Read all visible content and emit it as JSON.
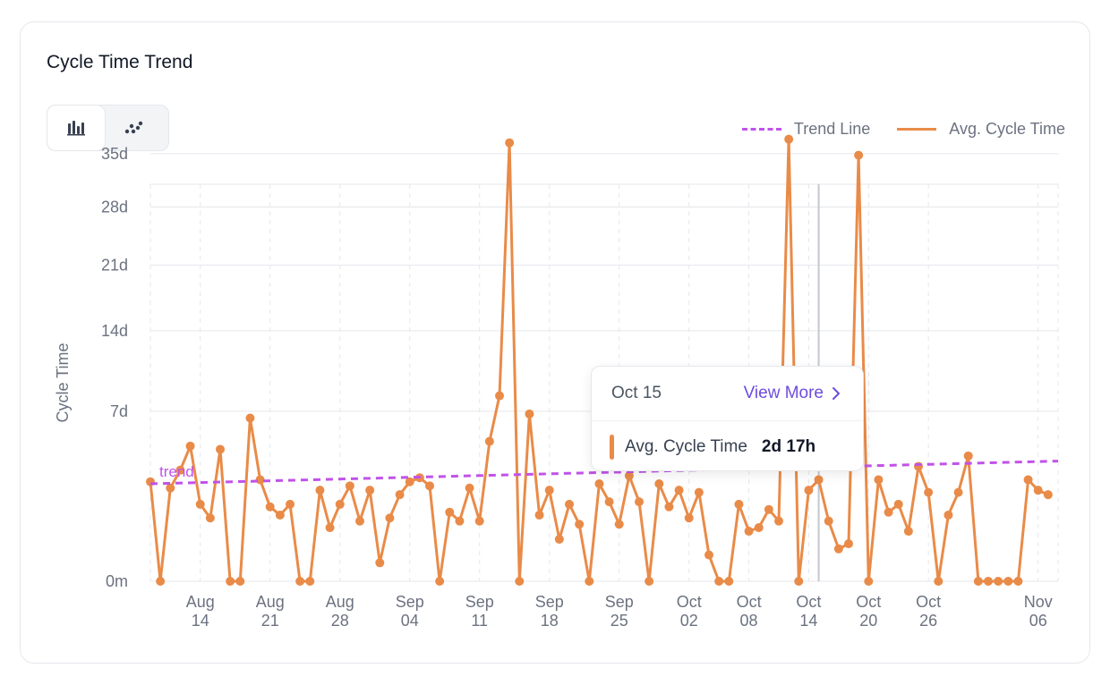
{
  "card": {
    "title": "Cycle Time Trend",
    "view_toggle": [
      {
        "name": "bar-chart-icon",
        "active": true
      },
      {
        "name": "scatter-icon",
        "active": false
      }
    ]
  },
  "legend": {
    "trend": "Trend Line",
    "avg": "Avg. Cycle Time"
  },
  "tooltip": {
    "date": "Oct 15",
    "view_more": "View More",
    "series_label": "Avg. Cycle Time",
    "series_value": "2d 17h"
  },
  "colors": {
    "series": "#e98b48",
    "trend": "#c152e8",
    "grid": "#e5e7eb",
    "text_muted": "#6b7280",
    "link": "#6d4cdf"
  },
  "chart_data": {
    "type": "line",
    "ylabel": "Cycle Time",
    "y_ticks": [
      {
        "label": "0m",
        "days": 0
      },
      {
        "label": "7d",
        "days": 7
      },
      {
        "label": "14d",
        "days": 14
      },
      {
        "label": "21d",
        "days": 21
      },
      {
        "label": "28d",
        "days": 28
      },
      {
        "label": "35d",
        "days": 35
      }
    ],
    "x_ticks": [
      {
        "month": "Aug",
        "day": "14",
        "date": "2023-08-14"
      },
      {
        "month": "Aug",
        "day": "21",
        "date": "2023-08-21"
      },
      {
        "month": "Aug",
        "day": "28",
        "date": "2023-08-28"
      },
      {
        "month": "Sep",
        "day": "04",
        "date": "2023-09-04"
      },
      {
        "month": "Sep",
        "day": "11",
        "date": "2023-09-11"
      },
      {
        "month": "Sep",
        "day": "18",
        "date": "2023-09-18"
      },
      {
        "month": "Sep",
        "day": "25",
        "date": "2023-09-25"
      },
      {
        "month": "Oct",
        "day": "02",
        "date": "2023-10-02"
      },
      {
        "month": "Oct",
        "day": "08",
        "date": "2023-10-08"
      },
      {
        "month": "Oct",
        "day": "14",
        "date": "2023-10-14"
      },
      {
        "month": "Oct",
        "day": "20",
        "date": "2023-10-20"
      },
      {
        "month": "Oct",
        "day": "26",
        "date": "2023-10-26"
      },
      {
        "month": "Nov",
        "day": "06",
        "date": "2023-11-06"
      }
    ],
    "trend_label": "trend",
    "trend": {
      "start": [
        "2023-08-09",
        2.5
      ],
      "end": [
        "2023-11-08",
        3.7
      ]
    },
    "hover_date": "2023-10-15",
    "series": [
      {
        "name": "Avg. Cycle Time",
        "points": [
          [
            "2023-08-09",
            2.6
          ],
          [
            "2023-08-10",
            0
          ],
          [
            "2023-08-11",
            2.3
          ],
          [
            "2023-08-12",
            3.2
          ],
          [
            "2023-08-13",
            4.6
          ],
          [
            "2023-08-14",
            1.6
          ],
          [
            "2023-08-15",
            1.1
          ],
          [
            "2023-08-16",
            4.4
          ],
          [
            "2023-08-17",
            0
          ],
          [
            "2023-08-18",
            0
          ],
          [
            "2023-08-19",
            6.5
          ],
          [
            "2023-08-20",
            2.7
          ],
          [
            "2023-08-21",
            1.5
          ],
          [
            "2023-08-22",
            1.2
          ],
          [
            "2023-08-23",
            1.6
          ],
          [
            "2023-08-24",
            0
          ],
          [
            "2023-08-25",
            0
          ],
          [
            "2023-08-26",
            2.2
          ],
          [
            "2023-08-27",
            0.8
          ],
          [
            "2023-08-28",
            1.6
          ],
          [
            "2023-08-29",
            2.4
          ],
          [
            "2023-08-30",
            1.0
          ],
          [
            "2023-08-31",
            2.2
          ],
          [
            "2023-09-01",
            0.1
          ],
          [
            "2023-09-02",
            1.1
          ],
          [
            "2023-09-03",
            2.0
          ],
          [
            "2023-09-04",
            2.6
          ],
          [
            "2023-09-05",
            2.8
          ],
          [
            "2023-09-06",
            2.4
          ],
          [
            "2023-09-07",
            0
          ],
          [
            "2023-09-08",
            1.3
          ],
          [
            "2023-09-09",
            1.0
          ],
          [
            "2023-09-10",
            2.3
          ],
          [
            "2023-09-11",
            1.0
          ],
          [
            "2023-09-12",
            4.9
          ],
          [
            "2023-09-13",
            8.2
          ],
          [
            "2023-09-14",
            36.5
          ],
          [
            "2023-09-15",
            0
          ],
          [
            "2023-09-16",
            6.8
          ],
          [
            "2023-09-17",
            1.2
          ],
          [
            "2023-09-18",
            2.2
          ],
          [
            "2023-09-19",
            0.5
          ],
          [
            "2023-09-20",
            1.6
          ],
          [
            "2023-09-21",
            0.9
          ],
          [
            "2023-09-22",
            0
          ],
          [
            "2023-09-23",
            2.5
          ],
          [
            "2023-09-24",
            1.7
          ],
          [
            "2023-09-25",
            0.9
          ],
          [
            "2023-09-26",
            2.9
          ],
          [
            "2023-09-27",
            1.7
          ],
          [
            "2023-09-28",
            0
          ],
          [
            "2023-09-29",
            2.5
          ],
          [
            "2023-09-30",
            1.5
          ],
          [
            "2023-10-01",
            2.2
          ],
          [
            "2023-10-02",
            1.1
          ],
          [
            "2023-10-03",
            2.1
          ],
          [
            "2023-10-04",
            0.2
          ],
          [
            "2023-10-05",
            0
          ],
          [
            "2023-10-06",
            0
          ],
          [
            "2023-10-07",
            1.6
          ],
          [
            "2023-10-08",
            0.7
          ],
          [
            "2023-10-09",
            0.8
          ],
          [
            "2023-10-10",
            1.4
          ],
          [
            "2023-10-11",
            1.0
          ],
          [
            "2023-10-12",
            37.0
          ],
          [
            "2023-10-13",
            0
          ],
          [
            "2023-10-14",
            2.2
          ],
          [
            "2023-10-15",
            2.7
          ],
          [
            "2023-10-16",
            1.0
          ],
          [
            "2023-10-17",
            0.3
          ],
          [
            "2023-10-18",
            0.4
          ],
          [
            "2023-10-19",
            34.8
          ],
          [
            "2023-10-20",
            0
          ],
          [
            "2023-10-21",
            2.7
          ],
          [
            "2023-10-22",
            1.3
          ],
          [
            "2023-10-23",
            1.6
          ],
          [
            "2023-10-24",
            0.7
          ],
          [
            "2023-10-25",
            3.4
          ],
          [
            "2023-10-26",
            2.1
          ],
          [
            "2023-10-27",
            0
          ],
          [
            "2023-10-28",
            1.2
          ],
          [
            "2023-10-29",
            2.1
          ],
          [
            "2023-10-30",
            4.0
          ],
          [
            "2023-10-31",
            0
          ],
          [
            "2023-11-01",
            0
          ],
          [
            "2023-11-02",
            0
          ],
          [
            "2023-11-03",
            0
          ],
          [
            "2023-11-04",
            0
          ],
          [
            "2023-11-05",
            2.7
          ],
          [
            "2023-11-06",
            2.2
          ],
          [
            "2023-11-07",
            2.0
          ]
        ]
      }
    ]
  }
}
